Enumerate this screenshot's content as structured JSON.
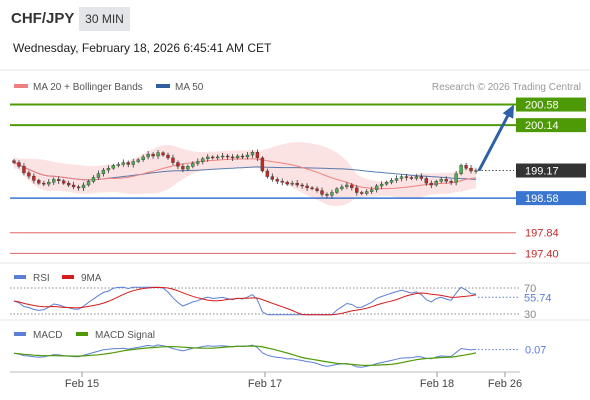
{
  "header": {
    "pair": "CHF/JPY",
    "timeframe": "30 MIN",
    "datetime": "Wednesday, February 18, 2026 6:45:41 AM CET"
  },
  "colors": {
    "up_candle": "#4caf50",
    "down_candle": "#c62828",
    "green_level": "#4e9a06",
    "blue_level": "#3a76d0",
    "red_level": "#e06666",
    "current_price": "#333333",
    "bollinger_fill": "#fbdada",
    "ma20": "#f08080",
    "ma50": "#2f5f9f",
    "rsi": "#5b7fd6",
    "rsi_ma": "#d81b1b",
    "macd": "#5b7fd6",
    "macd_signal": "#4e9a06",
    "arrow": "#2e5fa8"
  },
  "legend": {
    "ma20_label": "MA 20 + Bollinger Bands",
    "ma50_label": "MA 50",
    "source": "Research © 2026 Trading Central"
  },
  "chart_data": [
    {
      "type": "candlestick",
      "ylim": [
        197.3,
        200.72
      ],
      "levels": [
        {
          "value": 200.58,
          "label": "200.58",
          "kind": "resistance"
        },
        {
          "value": 200.14,
          "label": "200.14",
          "kind": "resistance"
        },
        {
          "value": 199.17,
          "label": "199.17",
          "kind": "current"
        },
        {
          "value": 198.58,
          "label": "198.58",
          "kind": "support"
        },
        {
          "value": 197.84,
          "label": "197.84",
          "kind": "support"
        },
        {
          "value": 197.4,
          "label": "197.40",
          "kind": "support"
        }
      ],
      "x_labels": [
        "Feb 15",
        "Feb 17",
        "Feb 18",
        "Feb 26"
      ],
      "closes": [
        199.34,
        199.26,
        199.12,
        199.05,
        198.96,
        198.9,
        198.88,
        198.92,
        198.98,
        198.95,
        198.9,
        198.86,
        198.82,
        198.8,
        198.86,
        198.94,
        199.02,
        199.1,
        199.18,
        199.22,
        199.28,
        199.3,
        199.34,
        199.3,
        199.36,
        199.4,
        199.46,
        199.52,
        199.48,
        199.55,
        199.5,
        199.44,
        199.34,
        199.26,
        199.2,
        199.26,
        199.32,
        199.36,
        199.42,
        199.46,
        199.44,
        199.46,
        199.48,
        199.46,
        199.44,
        199.48,
        199.46,
        199.5,
        199.56,
        199.44,
        199.16,
        199.04,
        198.98,
        198.94,
        198.92,
        198.88,
        198.9,
        198.86,
        198.84,
        198.8,
        198.78,
        198.74,
        198.66,
        198.64,
        198.7,
        198.78,
        198.82,
        198.86,
        198.8,
        198.7,
        198.68,
        198.72,
        198.76,
        198.84,
        198.88,
        198.92,
        198.96,
        199.0,
        199.04,
        199.02,
        199.0,
        199.04,
        199.0,
        198.9,
        198.86,
        198.94,
        198.98,
        198.94,
        198.92,
        199.1,
        199.28,
        199.22,
        199.16,
        199.17
      ],
      "projection": {
        "from": 199.17,
        "to": 200.58
      },
      "legend": [
        "MA 20 + Bollinger Bands",
        "MA 50"
      ]
    },
    {
      "type": "line",
      "series": [
        {
          "name": "RSI"
        },
        {
          "name": "9MA"
        }
      ],
      "ylim": [
        27,
        73
      ],
      "levels": [
        {
          "value": 70,
          "label": "70"
        },
        {
          "value": 30,
          "label": "30"
        }
      ],
      "current": {
        "value": 55.74,
        "label": "55.74"
      }
    },
    {
      "type": "line",
      "series": [
        {
          "name": "MACD"
        },
        {
          "name": "MACD Signal"
        }
      ],
      "ylim": [
        -0.35,
        0.25
      ],
      "current": {
        "value": 0.07,
        "label": "0.07"
      }
    }
  ]
}
